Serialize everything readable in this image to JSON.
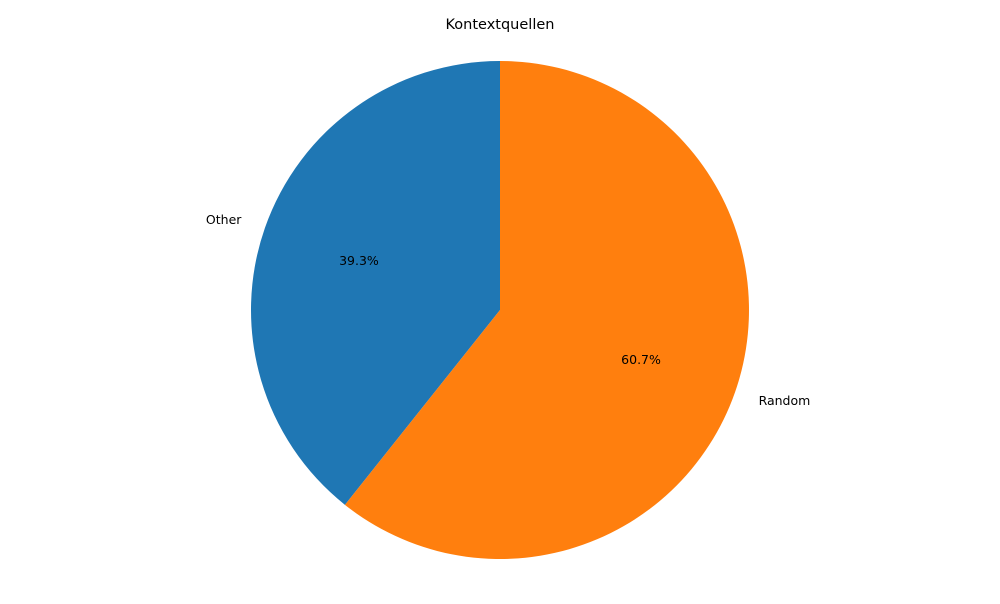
{
  "chart_data": {
    "type": "pie",
    "title": "Kontextquellen",
    "slices": [
      {
        "label": "Other",
        "value": 39.3,
        "pct_label": "39.3%",
        "color": "#1f77b4"
      },
      {
        "label": "Random",
        "value": 60.7,
        "pct_label": "60.7%",
        "color": "#ff7f0e"
      }
    ],
    "start_angle_deg": 90,
    "direction": "counterclockwise",
    "legend": "none"
  }
}
